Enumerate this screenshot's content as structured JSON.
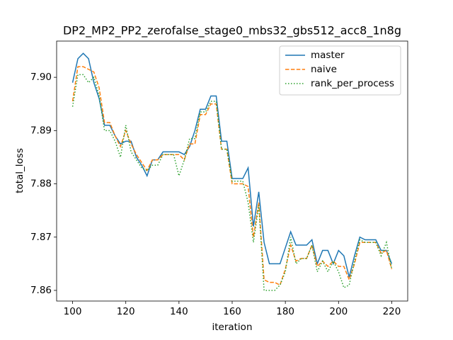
{
  "chart_data": {
    "type": "line",
    "title": "DP2_MP2_PP2_zerofalse_stage0_mbs32_gbs512_acc8_1n8g",
    "xlabel": "iteration",
    "ylabel": "total_loss",
    "x": [
      100,
      102,
      104,
      106,
      108,
      110,
      112,
      114,
      116,
      118,
      120,
      122,
      124,
      126,
      128,
      130,
      132,
      134,
      136,
      138,
      140,
      142,
      144,
      146,
      148,
      150,
      152,
      154,
      156,
      158,
      160,
      162,
      164,
      166,
      168,
      170,
      172,
      174,
      176,
      178,
      180,
      182,
      184,
      186,
      188,
      190,
      192,
      194,
      196,
      198,
      200,
      202,
      204,
      206,
      208,
      210,
      212,
      214,
      216,
      218,
      220
    ],
    "series": [
      {
        "name": "master",
        "color": "#1f77b4",
        "linestyle": "solid",
        "values": [
          7.899,
          7.9035,
          7.9045,
          7.9035,
          7.899,
          7.896,
          7.891,
          7.891,
          7.889,
          7.8875,
          7.888,
          7.888,
          7.885,
          7.8835,
          7.8815,
          7.8845,
          7.8845,
          7.886,
          7.886,
          7.886,
          7.886,
          7.8855,
          7.887,
          7.89,
          7.894,
          7.894,
          7.8965,
          7.8965,
          7.888,
          7.888,
          7.881,
          7.881,
          7.881,
          7.883,
          7.872,
          7.8785,
          7.869,
          7.865,
          7.865,
          7.865,
          7.868,
          7.871,
          7.8685,
          7.8685,
          7.8685,
          7.8695,
          7.865,
          7.8675,
          7.8675,
          7.865,
          7.8675,
          7.8665,
          7.8625,
          7.8665,
          7.87,
          7.8695,
          7.8695,
          7.8695,
          7.8675,
          7.8675,
          7.865
        ]
      },
      {
        "name": "naive",
        "color": "#ff7f0e",
        "linestyle": "dashed",
        "values": [
          7.8955,
          7.902,
          7.902,
          7.9015,
          7.901,
          7.898,
          7.8915,
          7.8915,
          7.889,
          7.887,
          7.89,
          7.8875,
          7.8855,
          7.884,
          7.8825,
          7.8845,
          7.8845,
          7.8855,
          7.8855,
          7.8855,
          7.8855,
          7.8845,
          7.8875,
          7.8875,
          7.893,
          7.893,
          7.895,
          7.895,
          7.8865,
          7.8865,
          7.88,
          7.88,
          7.88,
          7.8795,
          7.87,
          7.8765,
          7.862,
          7.8615,
          7.8615,
          7.861,
          7.864,
          7.8685,
          7.8655,
          7.866,
          7.866,
          7.8685,
          7.8645,
          7.8655,
          7.8645,
          7.8655,
          7.8645,
          7.8645,
          7.862,
          7.865,
          7.869,
          7.869,
          7.869,
          7.869,
          7.867,
          7.8675,
          7.864
        ]
      },
      {
        "name": "rank_per_process",
        "color": "#2ca02c",
        "linestyle": "dotted",
        "values": [
          7.8945,
          7.9005,
          7.9005,
          7.899,
          7.9,
          7.8965,
          7.89,
          7.89,
          7.888,
          7.885,
          7.891,
          7.886,
          7.8845,
          7.883,
          7.8825,
          7.8835,
          7.8835,
          7.8855,
          7.8855,
          7.8855,
          7.8815,
          7.8845,
          7.8885,
          7.8885,
          7.8935,
          7.8935,
          7.8955,
          7.8955,
          7.8865,
          7.8865,
          7.8805,
          7.8805,
          7.8805,
          7.8765,
          7.869,
          7.876,
          7.86,
          7.86,
          7.86,
          7.861,
          7.8635,
          7.87,
          7.865,
          7.866,
          7.866,
          7.8685,
          7.8635,
          7.8655,
          7.8635,
          7.8655,
          7.8635,
          7.8605,
          7.861,
          7.8655,
          7.8695,
          7.869,
          7.869,
          7.869,
          7.8665,
          7.869,
          7.864
        ]
      }
    ],
    "xlim": [
      94,
      226
    ],
    "ylim": [
      7.858,
      7.9068
    ],
    "xticks": [
      100,
      120,
      140,
      160,
      180,
      200,
      220
    ],
    "yticks": [
      7.86,
      7.87,
      7.88,
      7.89,
      {
        "value": 7.9,
        "label": "7.90"
      }
    ],
    "grid": false,
    "legend": "upper right"
  }
}
